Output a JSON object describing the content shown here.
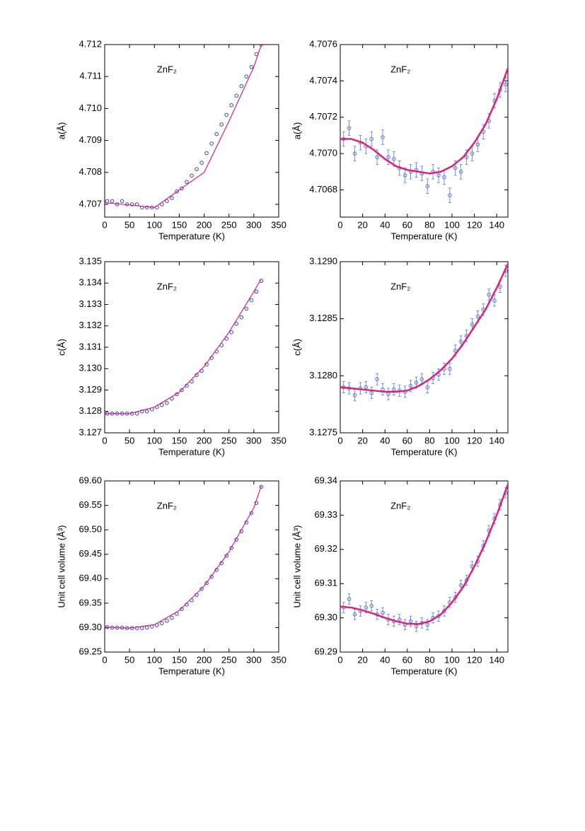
{
  "chart_data": [
    {
      "type": "scatter",
      "annotation": "ZnF₂",
      "x_label": "Temperature (K)",
      "y_label": "a(Å)",
      "xlim": [
        0,
        350
      ],
      "xticks": [
        0,
        50,
        100,
        150,
        200,
        250,
        300,
        350
      ],
      "ylim": [
        4.7066,
        4.712
      ],
      "yticks": [
        4.707,
        4.708,
        4.709,
        {
          "value": 4.71,
          "label": "4.710"
        },
        4.711,
        4.712
      ],
      "series": [
        {
          "color": "#3344cc",
          "x": [
            5,
            15,
            25,
            35,
            45,
            55,
            65,
            75,
            85,
            95,
            105,
            115,
            125,
            135,
            145,
            155,
            165,
            175,
            185,
            195,
            205,
            215,
            225,
            235,
            245,
            255,
            265,
            275,
            285,
            295,
            305,
            315
          ],
          "values": [
            4.7071,
            4.7071,
            4.707,
            4.7071,
            4.707,
            4.707,
            4.707,
            4.7069,
            4.7069,
            4.7069,
            4.7069,
            4.707,
            4.7071,
            4.7072,
            4.7074,
            4.7075,
            4.7077,
            4.7079,
            4.7081,
            4.7083,
            4.7086,
            4.7089,
            4.7092,
            4.7095,
            4.7098,
            4.7101,
            4.7104,
            4.7107,
            4.711,
            4.7113,
            4.7117,
            4.712
          ]
        }
      ],
      "fit": {
        "color": "#e0207a",
        "x": [
          0,
          50,
          100,
          150,
          200,
          250,
          300,
          315
        ],
        "values": [
          4.70705,
          4.70698,
          4.7069,
          4.70745,
          4.708,
          4.7096,
          4.7113,
          4.712
        ]
      }
    },
    {
      "type": "scatter",
      "annotation": "ZnF₂",
      "x_label": "Temperature (K)",
      "y_label": "a(Å)",
      "xlim": [
        0,
        150
      ],
      "xticks": [
        0,
        20,
        40,
        60,
        80,
        100,
        120,
        140
      ],
      "ylim": [
        4.70665,
        4.7076
      ],
      "yticks": [
        4.7068,
        {
          "value": 4.707,
          "label": "4.7070"
        },
        4.7072,
        4.7074,
        4.7076
      ],
      "series": [
        {
          "color": "#5577dd",
          "x": [
            3,
            8,
            13,
            18,
            23,
            28,
            33,
            38,
            43,
            48,
            53,
            58,
            63,
            68,
            73,
            78,
            83,
            88,
            93,
            98,
            103,
            108,
            113,
            118,
            123,
            128,
            133,
            138,
            143,
            148
          ],
          "values": [
            4.70708,
            4.70714,
            4.707,
            4.70706,
            4.70704,
            4.70708,
            4.70698,
            4.70709,
            4.70698,
            4.70697,
            4.70692,
            4.70688,
            4.7069,
            4.70691,
            4.70689,
            4.70682,
            4.7069,
            4.70688,
            4.70687,
            4.70677,
            4.70692,
            4.7069,
            4.70698,
            4.707,
            4.70705,
            4.70712,
            4.70718,
            4.70729,
            4.70735,
            4.70738
          ],
          "errors": [
            4e-05,
            4e-05,
            4e-05,
            4e-05,
            4e-05,
            4e-05,
            4e-05,
            4e-05,
            4e-05,
            4e-05,
            4e-05,
            4e-05,
            4e-05,
            4e-05,
            4e-05,
            4e-05,
            4e-05,
            4e-05,
            4e-05,
            4e-05,
            4e-05,
            4e-05,
            4e-05,
            4e-05,
            4e-05,
            4e-05,
            4e-05,
            4e-05,
            4e-05,
            4e-05
          ]
        }
      ],
      "fit": {
        "color": "#e0207a",
        "x": [
          0,
          10,
          20,
          30,
          40,
          50,
          60,
          70,
          80,
          90,
          100,
          110,
          120,
          130,
          140,
          150
        ],
        "values": [
          4.70708,
          4.70708,
          4.70706,
          4.70702,
          4.70697,
          4.70693,
          4.70691,
          4.7069,
          4.70689,
          4.7069,
          4.70693,
          4.70698,
          4.70706,
          4.70716,
          4.7073,
          4.70747
        ]
      }
    },
    {
      "type": "scatter",
      "annotation": "ZnF₂",
      "x_label": "Temperature (K)",
      "y_label": "c(Å)",
      "xlim": [
        0,
        350
      ],
      "xticks": [
        0,
        50,
        100,
        150,
        200,
        250,
        300,
        350
      ],
      "ylim": [
        3.127,
        3.135
      ],
      "yticks": [
        3.127,
        3.128,
        3.129,
        {
          "value": 3.13,
          "label": "3.130"
        },
        3.131,
        3.132,
        3.133,
        3.134,
        3.135
      ],
      "series": [
        {
          "color": "#3344cc",
          "x": [
            5,
            15,
            25,
            35,
            45,
            55,
            65,
            75,
            85,
            95,
            105,
            115,
            125,
            135,
            145,
            155,
            165,
            175,
            185,
            195,
            205,
            215,
            225,
            235,
            245,
            255,
            265,
            275,
            285,
            295,
            305,
            315
          ],
          "values": [
            3.1279,
            3.1279,
            3.1279,
            3.1279,
            3.1279,
            3.1279,
            3.1279,
            3.128,
            3.128,
            3.1281,
            3.1282,
            3.1283,
            3.1284,
            3.1286,
            3.1288,
            3.129,
            3.1292,
            3.1294,
            3.1297,
            3.1299,
            3.1302,
            3.1305,
            3.1308,
            3.1311,
            3.1314,
            3.1317,
            3.1321,
            3.1324,
            3.1328,
            3.1332,
            3.1336,
            3.1341
          ]
        }
      ],
      "fit": {
        "color": "#e0207a",
        "x": [
          0,
          50,
          100,
          150,
          200,
          250,
          300,
          315
        ],
        "values": [
          3.1279,
          3.1279,
          3.1282,
          3.1289,
          3.1301,
          3.1317,
          3.1336,
          3.1342
        ]
      }
    },
    {
      "type": "scatter",
      "annotation": "ZnF₂",
      "x_label": "Temperature (K)",
      "y_label": "c(Å)",
      "xlim": [
        0,
        150
      ],
      "xticks": [
        0,
        20,
        40,
        60,
        80,
        100,
        120,
        140
      ],
      "ylim": [
        3.1275,
        3.129
      ],
      "yticks": [
        3.1275,
        {
          "value": 3.128,
          "label": "3.1280"
        },
        3.1285,
        {
          "value": 3.129,
          "label": "3.1290"
        }
      ],
      "series": [
        {
          "color": "#5577dd",
          "x": [
            3,
            8,
            13,
            18,
            23,
            28,
            33,
            38,
            43,
            48,
            53,
            58,
            63,
            68,
            73,
            78,
            83,
            88,
            93,
            98,
            103,
            108,
            113,
            118,
            123,
            128,
            133,
            138,
            143,
            148
          ],
          "values": [
            3.1279,
            3.12789,
            3.12783,
            3.12789,
            3.1279,
            3.12785,
            3.12797,
            3.12788,
            3.12784,
            3.12788,
            3.12787,
            3.12786,
            3.12791,
            3.12794,
            3.12797,
            3.1279,
            3.12798,
            3.12801,
            3.12806,
            3.12806,
            3.12822,
            3.1283,
            3.12835,
            3.12845,
            3.12852,
            3.12858,
            3.12871,
            3.12866,
            3.12878,
            3.12892
          ],
          "errors": [
            5e-05,
            5e-05,
            5e-05,
            5e-05,
            5e-05,
            5e-05,
            5e-05,
            5e-05,
            5e-05,
            5e-05,
            5e-05,
            5e-05,
            5e-05,
            5e-05,
            5e-05,
            5e-05,
            5e-05,
            5e-05,
            5e-05,
            5e-05,
            5e-05,
            5e-05,
            5e-05,
            5e-05,
            5e-05,
            5e-05,
            5e-05,
            5e-05,
            5e-05,
            5e-05
          ]
        }
      ],
      "fit": {
        "color": "#e0207a",
        "x": [
          0,
          10,
          20,
          30,
          40,
          50,
          60,
          70,
          80,
          90,
          100,
          110,
          120,
          130,
          140,
          150
        ],
        "values": [
          3.1279,
          3.12789,
          3.12788,
          3.12787,
          3.12786,
          3.12786,
          3.12787,
          3.12791,
          3.12797,
          3.12805,
          3.12815,
          3.12828,
          3.12843,
          3.12858,
          3.12877,
          3.12898
        ]
      }
    },
    {
      "type": "scatter",
      "annotation": "ZnF₂",
      "x_label": "Temperature (K)",
      "y_label": "Unit cell volume (Å³)",
      "xlim": [
        0,
        350
      ],
      "xticks": [
        0,
        50,
        100,
        150,
        200,
        250,
        300,
        350
      ],
      "ylim": [
        69.25,
        69.6
      ],
      "yticks": [
        69.25,
        {
          "value": 69.3,
          "label": "69.30"
        },
        69.35,
        {
          "value": 69.4,
          "label": "69.40"
        },
        69.45,
        {
          "value": 69.5,
          "label": "69.50"
        },
        69.55,
        {
          "value": 69.6,
          "label": "69.60"
        }
      ],
      "series": [
        {
          "color": "#3344cc",
          "x": [
            5,
            15,
            25,
            35,
            45,
            55,
            65,
            75,
            85,
            95,
            105,
            115,
            125,
            135,
            145,
            155,
            165,
            175,
            185,
            195,
            205,
            215,
            225,
            235,
            245,
            255,
            265,
            275,
            285,
            295,
            305,
            315
          ],
          "values": [
            69.301,
            69.3,
            69.3,
            69.3,
            69.299,
            69.299,
            69.299,
            69.299,
            69.3,
            69.302,
            69.305,
            69.309,
            69.314,
            69.32,
            69.328,
            69.338,
            69.347,
            69.356,
            69.367,
            69.379,
            69.391,
            69.404,
            69.418,
            69.432,
            69.447,
            69.463,
            69.48,
            69.497,
            69.515,
            69.534,
            69.555,
            69.588
          ]
        }
      ],
      "fit": {
        "color": "#e0207a",
        "x": [
          0,
          50,
          100,
          150,
          200,
          250,
          300,
          315
        ],
        "values": [
          69.301,
          69.299,
          69.306,
          69.335,
          69.385,
          69.455,
          69.545,
          69.59
        ]
      }
    },
    {
      "type": "scatter",
      "annotation": "ZnF₂",
      "x_label": "Temperature (K)",
      "y_label": "Unit cell volume (Å³)",
      "xlim": [
        0,
        150
      ],
      "xticks": [
        0,
        20,
        40,
        60,
        80,
        100,
        120,
        140
      ],
      "ylim": [
        69.29,
        69.34
      ],
      "yticks": [
        69.29,
        {
          "value": 69.3,
          "label": "69.30"
        },
        69.31,
        69.32,
        69.33,
        69.34
      ],
      "series": [
        {
          "color": "#5577dd",
          "x": [
            3,
            8,
            13,
            18,
            23,
            28,
            33,
            38,
            43,
            48,
            53,
            58,
            63,
            68,
            73,
            78,
            83,
            88,
            93,
            98,
            103,
            108,
            113,
            118,
            123,
            128,
            133,
            138,
            143,
            148
          ],
          "values": [
            69.303,
            69.3055,
            69.301,
            69.302,
            69.303,
            69.3035,
            69.301,
            69.3015,
            69.2995,
            69.299,
            69.2995,
            69.298,
            69.299,
            69.2975,
            69.2985,
            69.298,
            69.3,
            69.3005,
            69.302,
            69.3045,
            69.306,
            69.3095,
            69.311,
            69.315,
            69.3165,
            69.321,
            69.3255,
            69.329,
            69.333,
            69.3365
          ],
          "errors": [
            0.0015,
            0.0015,
            0.0015,
            0.0015,
            0.0015,
            0.0015,
            0.0015,
            0.0015,
            0.0015,
            0.0015,
            0.0015,
            0.0015,
            0.0015,
            0.0015,
            0.0015,
            0.0015,
            0.0015,
            0.0015,
            0.0015,
            0.0015,
            0.0015,
            0.0015,
            0.0015,
            0.0015,
            0.0015,
            0.0015,
            0.0015,
            0.0015,
            0.0015,
            0.0015
          ]
        }
      ],
      "fit": {
        "color": "#e0207a",
        "x": [
          0,
          10,
          20,
          30,
          40,
          50,
          60,
          70,
          80,
          90,
          100,
          110,
          120,
          130,
          140,
          150
        ],
        "values": [
          69.3033,
          69.303,
          69.3022,
          69.3012,
          69.3,
          69.299,
          69.2983,
          69.2982,
          69.299,
          69.301,
          69.3045,
          69.309,
          69.315,
          69.322,
          69.33,
          69.339
        ]
      }
    }
  ]
}
